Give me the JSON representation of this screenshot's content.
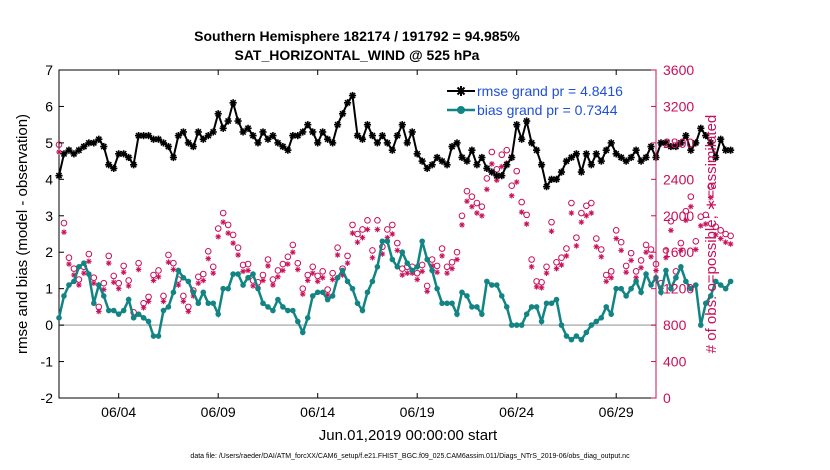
{
  "chart_data": {
    "type": "line",
    "title": "Southern Hemisphere 182174 / 191792 = 94.985%",
    "subtitle": "SAT_HORIZONTAL_WIND @ 525 hPa",
    "xlabel": "Jun.01,2019 00:00:00 start",
    "ylabel_left": "rmse and bias (model - observation)",
    "ylabel_right": "# of obs: o=possible; ∗=assimilated",
    "footnote": "data file: /Users/raeder/DAI/ATM_forcXX/CAM6_setup/f.e21.FHIST_BGC.f09_025.CAM6assim.011/Diags_NTrS_2019-06/obs_diag_output.nc",
    "x_ticks": [
      "06/04",
      "06/09",
      "06/14",
      "06/19",
      "06/24",
      "06/29"
    ],
    "x_tick_days": [
      4,
      9,
      14,
      19,
      24,
      29
    ],
    "xlim_days": [
      1,
      31
    ],
    "ylim_left": [
      -2,
      7
    ],
    "y_ticks_left": [
      "-2",
      "-1",
      "0",
      "1",
      "2",
      "3",
      "4",
      "5",
      "6",
      "7"
    ],
    "ylim_right": [
      0,
      3600
    ],
    "y_ticks_right": [
      "0",
      "400",
      "800",
      "1200",
      "1600",
      "2000",
      "2400",
      "2800",
      "3200",
      "3600"
    ],
    "grid": false,
    "legend_position": "top-right",
    "series": [
      {
        "name": "rmse grand pr = 4.8416",
        "axis": "left",
        "color": "#000000",
        "marker": "asterisk",
        "x_start_day": 1.0,
        "x_step_days": 0.25,
        "values": [
          4.1,
          4.7,
          4.8,
          4.7,
          4.8,
          4.9,
          5.0,
          5.0,
          5.1,
          4.9,
          4.4,
          4.3,
          4.7,
          4.7,
          4.6,
          4.4,
          5.2,
          5.2,
          5.2,
          5.1,
          5.1,
          5.0,
          4.9,
          4.6,
          5.2,
          5.3,
          5.0,
          4.9,
          5.3,
          5.1,
          5.2,
          5.3,
          5.8,
          5.4,
          5.6,
          6.1,
          5.6,
          5.3,
          5.4,
          5.2,
          5.0,
          5.3,
          5.1,
          5.2,
          5.0,
          4.9,
          4.8,
          5.2,
          5.2,
          5.3,
          5.5,
          5.3,
          5.0,
          5.3,
          5.1,
          5.0,
          5.5,
          5.8,
          6.1,
          6.3,
          5.2,
          5.1,
          5.5,
          5.2,
          5.0,
          5.2,
          5.0,
          4.8,
          5.2,
          5.5,
          5.0,
          5.3,
          4.7,
          4.5,
          4.3,
          4.4,
          4.6,
          4.5,
          4.4,
          4.9,
          5.0,
          4.6,
          4.5,
          4.8,
          4.4,
          4.6,
          4.3,
          4.2,
          4.1,
          4.1,
          4.4,
          4.6,
          5.5,
          5.1,
          5.6,
          5.0,
          4.8,
          4.4,
          3.8,
          4.0,
          4.0,
          4.2,
          4.5,
          4.6,
          4.7,
          4.2,
          4.7,
          4.4,
          4.7,
          4.5,
          4.8,
          5.0,
          4.7,
          4.6,
          4.5,
          4.6,
          4.8,
          4.5,
          4.6,
          4.9,
          4.6,
          5.0,
          5.0,
          4.9,
          4.9,
          5.0,
          5.2,
          4.8,
          5.0,
          5.4,
          5.2,
          5.0,
          4.6,
          5.1,
          4.8,
          4.8
        ]
      },
      {
        "name": "bias grand pr = 0.7344",
        "axis": "left",
        "color": "#138484",
        "marker": "circle",
        "x_start_day": 1.0,
        "x_step_days": 0.25,
        "values": [
          0.2,
          0.8,
          1.1,
          1.2,
          1.6,
          1.7,
          1.4,
          0.6,
          1.1,
          0.8,
          0.4,
          0.4,
          0.3,
          0.4,
          0.7,
          0.2,
          0.3,
          0.2,
          0.1,
          -0.3,
          -0.3,
          0.4,
          0.5,
          0.9,
          1.5,
          1.3,
          1.2,
          0.9,
          0.6,
          0.9,
          0.6,
          0.6,
          0.3,
          1.0,
          1.0,
          1.4,
          1.4,
          1.1,
          1.3,
          1.4,
          1.0,
          0.6,
          0.5,
          0.4,
          0.7,
          0.5,
          0.4,
          0.4,
          0.1,
          -0.2,
          0.2,
          0.8,
          0.9,
          0.9,
          0.7,
          0.8,
          1.3,
          1.5,
          1.2,
          1.0,
          0.6,
          0.4,
          0.9,
          1.2,
          1.6,
          2.3,
          2.3,
          1.8,
          1.6,
          2.0,
          1.7,
          1.5,
          1.6,
          2.3,
          1.8,
          1.5,
          1.0,
          0.6,
          0.6,
          0.6,
          0.3,
          0.9,
          0.8,
          0.5,
          0.5,
          0.3,
          1.2,
          1.1,
          1.1,
          0.8,
          0.5,
          0.0,
          0.0,
          0.0,
          0.3,
          0.5,
          0.5,
          0.1,
          0.6,
          0.6,
          0.7,
          0.0,
          -0.3,
          -0.4,
          -0.3,
          -0.4,
          -0.2,
          0.0,
          0.1,
          0.2,
          0.5,
          0.3,
          1.0,
          1.0,
          0.8,
          1.0,
          1.2,
          0.9,
          1.4,
          1.1,
          1.3,
          0.9,
          1.5,
          1.0,
          1.3,
          1.6,
          1.2,
          1.0,
          1.1,
          0.0,
          0.6,
          0.8,
          1.2,
          1.1,
          1.0,
          1.2
        ]
      },
      {
        "name": "possible",
        "axis": "right",
        "color": "#c8105a",
        "marker": "open-circle",
        "x_start_day": 1.0,
        "x_step_days": 0.25,
        "values": [
          2780,
          1920,
          1540,
          1420,
          1300,
          1440,
          1580,
          1320,
          1000,
          1260,
          1560,
          1340,
          1260,
          1450,
          1290,
          940,
          1480,
          1040,
          1110,
          1350,
          1400,
          1120,
          1570,
          1480,
          1300,
          1120,
          1000,
          1180,
          1330,
          1360,
          1610,
          1440,
          1860,
          2030,
          1900,
          1790,
          1650,
          1460,
          1470,
          1290,
          1270,
          1350,
          1520,
          1300,
          1400,
          1470,
          1550,
          1680,
          1480,
          1200,
          1350,
          1440,
          1340,
          1390,
          1190,
          1370,
          1650,
          1420,
          1560,
          1900,
          1800,
          1850,
          1950,
          1620,
          1950,
          1660,
          1850,
          1900,
          1700,
          1420,
          1440,
          1440,
          1370,
          1460,
          1230,
          1520,
          1450,
          1640,
          1440,
          1490,
          1600,
          2000,
          2270,
          2210,
          2140,
          2100,
          2410,
          2700,
          2510,
          2670,
          2720,
          2330,
          2490,
          2150,
          2010,
          1520,
          1280,
          1270,
          1440,
          1930,
          1490,
          1540,
          1640,
          2140,
          1760,
          2030,
          2110,
          2140,
          1750,
          1630,
          1350,
          1390,
          1840,
          1710,
          1450,
          1590,
          1390,
          1510,
          1680,
          1630,
          1470,
          1260,
          1620,
          1940,
          1390,
          1700,
          2050,
          2210,
          1720,
          1990,
          2010,
          2320,
          1880,
          1840,
          1800,
          1780
        ]
      },
      {
        "name": "assimilated",
        "axis": "right",
        "color": "#c8105a",
        "marker": "asterisk",
        "x_start_day": 1.0,
        "x_step_days": 0.25,
        "values": [
          2700,
          1820,
          1470,
          1350,
          1240,
          1370,
          1500,
          1260,
          950,
          1190,
          1480,
          1270,
          1200,
          1380,
          1230,
          890,
          1410,
          990,
          1060,
          1290,
          1330,
          1060,
          1490,
          1410,
          1240,
          1060,
          950,
          1120,
          1260,
          1290,
          1530,
          1370,
          1770,
          1930,
          1810,
          1700,
          1570,
          1390,
          1400,
          1230,
          1210,
          1290,
          1450,
          1240,
          1330,
          1400,
          1470,
          1600,
          1410,
          1140,
          1290,
          1370,
          1280,
          1320,
          1130,
          1300,
          1570,
          1350,
          1480,
          1810,
          1710,
          1760,
          1850,
          1540,
          1850,
          1580,
          1760,
          1800,
          1620,
          1350,
          1370,
          1370,
          1300,
          1390,
          1170,
          1450,
          1380,
          1560,
          1370,
          1420,
          1520,
          1900,
          2160,
          2100,
          2030,
          2000,
          2290,
          2570,
          2390,
          2540,
          2580,
          2220,
          2370,
          2040,
          1910,
          1440,
          1220,
          1210,
          1370,
          1830,
          1420,
          1460,
          1560,
          2030,
          1670,
          1930,
          2000,
          2030,
          1660,
          1550,
          1280,
          1320,
          1750,
          1620,
          1380,
          1510,
          1320,
          1430,
          1600,
          1550,
          1400,
          1200,
          1540,
          1840,
          1320,
          1620,
          1950,
          2100,
          1630,
          1890,
          1910,
          2200,
          1790,
          1750,
          1710,
          1690
        ]
      }
    ]
  }
}
